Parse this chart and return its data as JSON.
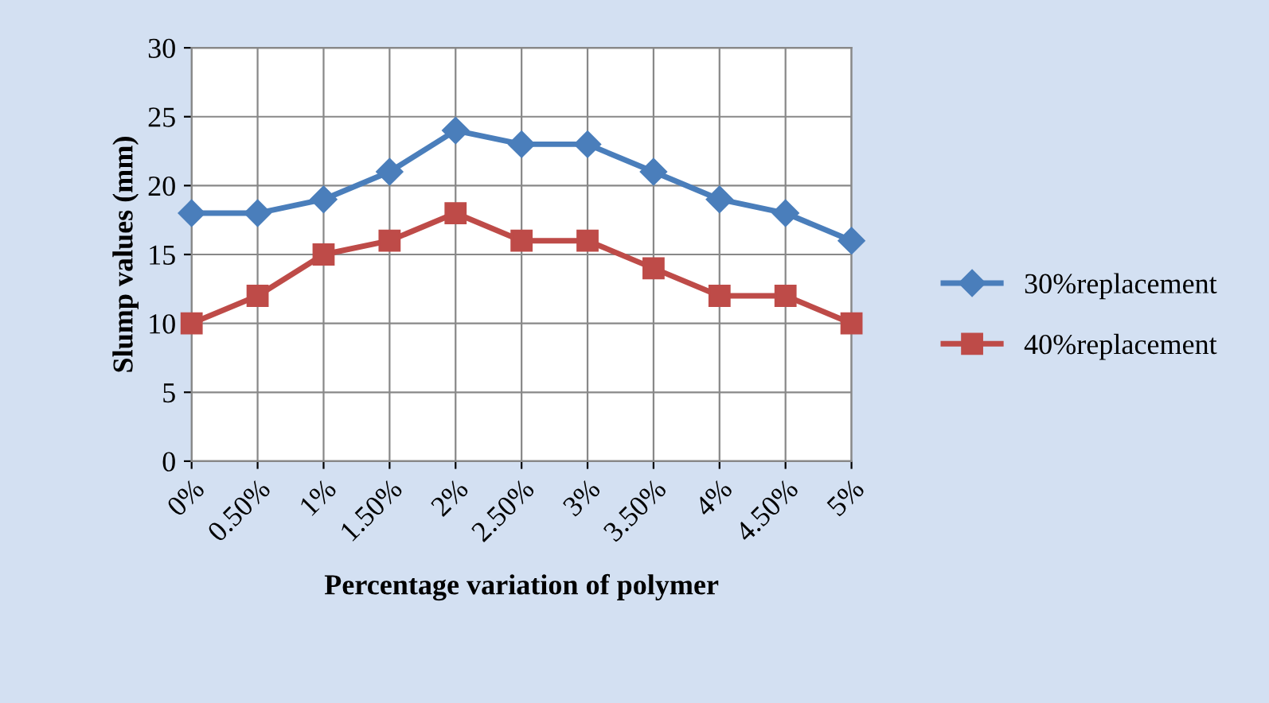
{
  "chart_data": {
    "type": "line",
    "xlabel": "Percentage variation of polymer",
    "ylabel": "Slump values (mm)",
    "categories": [
      "0%",
      "0.50%",
      "1%",
      "1.50%",
      "2%",
      "2.50%",
      "3%",
      "3.50%",
      "4%",
      "4.50%",
      "5%"
    ],
    "series": [
      {
        "name": "30%replacement",
        "color": "#4a7ebb",
        "marker": "diamond",
        "values": [
          18,
          18,
          19,
          21,
          24,
          23,
          23,
          21,
          19,
          18,
          16
        ]
      },
      {
        "name": "40%replacement",
        "color": "#be4b48",
        "marker": "square",
        "values": [
          10,
          12,
          15,
          16,
          18,
          16,
          16,
          14,
          12,
          12,
          10
        ]
      }
    ],
    "ylim": [
      0,
      30
    ],
    "yticks": [
      0,
      5,
      10,
      15,
      20,
      25,
      30
    ],
    "grid": true,
    "legend": "right",
    "line_style": "solid"
  }
}
